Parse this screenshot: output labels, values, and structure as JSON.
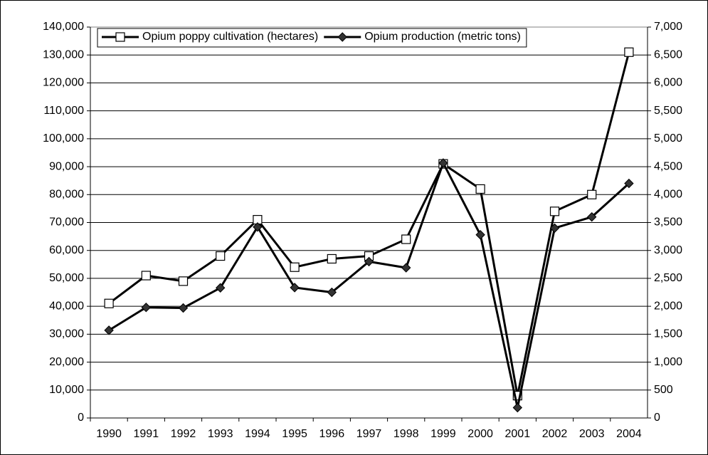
{
  "chart_data": {
    "type": "line",
    "categories": [
      "1990",
      "1991",
      "1992",
      "1993",
      "1994",
      "1995",
      "1996",
      "1997",
      "1998",
      "1999",
      "2000",
      "2001",
      "2002",
      "2003",
      "2004"
    ],
    "series": [
      {
        "name": "Opium poppy cultivation (hectares)",
        "color": "#000000",
        "marker": "square",
        "axis": "y",
        "values": [
          41000,
          51000,
          49000,
          58000,
          71000,
          54000,
          57000,
          58000,
          64000,
          91000,
          82000,
          8000,
          74000,
          80000,
          131000
        ]
      },
      {
        "name": "Opium production (metric tons)",
        "color": "#000000",
        "marker": "diamond",
        "axis": "y2",
        "values": [
          1570,
          1980,
          1970,
          2330,
          3420,
          2335,
          2250,
          2800,
          2690,
          4565,
          3280,
          185,
          3400,
          3600,
          4200
        ]
      }
    ],
    "ylim": [
      0,
      140000
    ],
    "yticks": [
      0,
      {
        "value": 10000,
        "label": "10,000"
      },
      {
        "value": 20000,
        "label": "20,000"
      },
      {
        "value": 30000,
        "label": "30,000"
      },
      {
        "value": 40000,
        "label": "40,000"
      },
      {
        "value": 50000,
        "label": "50,000"
      },
      {
        "value": 60000,
        "label": "60,000"
      },
      {
        "value": 70000,
        "label": "70,000"
      },
      {
        "value": 80000,
        "label": "80,000"
      },
      {
        "value": 90000,
        "label": "90,000"
      },
      {
        "value": 100000,
        "label": "100,000"
      },
      {
        "value": 110000,
        "label": "110,000"
      },
      {
        "value": 120000,
        "label": "120,000"
      },
      {
        "value": 130000,
        "label": "130,000"
      },
      {
        "value": 140000,
        "label": "140,000"
      }
    ],
    "y2lim": [
      0,
      7000
    ],
    "y2ticks": [
      0,
      500,
      {
        "value": 1000,
        "label": "1,000"
      },
      {
        "value": 1500,
        "label": "1,500"
      },
      {
        "value": 2000,
        "label": "2,000"
      },
      {
        "value": 2500,
        "label": "2,500"
      },
      {
        "value": 3000,
        "label": "3,000"
      },
      {
        "value": 3500,
        "label": "3,500"
      },
      {
        "value": 4000,
        "label": "4,000"
      },
      {
        "value": 4500,
        "label": "4,500"
      },
      {
        "value": 5000,
        "label": "5,000"
      },
      {
        "value": 5500,
        "label": "5,500"
      },
      {
        "value": 6000,
        "label": "6,000"
      },
      {
        "value": 6500,
        "label": "6,500"
      },
      {
        "value": 7000,
        "label": "7,000"
      }
    ],
    "grid": true,
    "legend": "top-left"
  }
}
